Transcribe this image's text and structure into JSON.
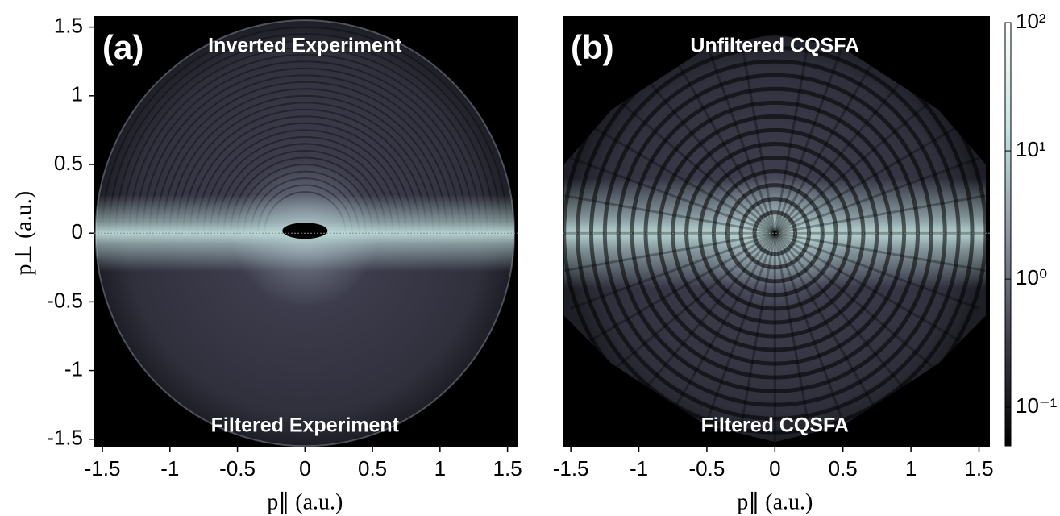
{
  "chart_data": [
    {
      "type": "heatmap",
      "panel_label": "(a)",
      "annotation_top": "Inverted Experiment",
      "annotation_bottom": "Filtered Experiment",
      "xlabel": "p∥ (a.u.)",
      "ylabel": "p⊥ (a.u.)",
      "xlim": [
        -1.56,
        1.58
      ],
      "ylim": [
        -1.56,
        1.58
      ],
      "xticks": [
        -1.5,
        -1,
        -0.5,
        0,
        0.5,
        1,
        1.5
      ],
      "yticks": [
        -1.5,
        -1,
        -0.5,
        0,
        0.5,
        1,
        1.5
      ]
    },
    {
      "type": "heatmap",
      "panel_label": "(b)",
      "annotation_top": "Unfiltered CQSFA",
      "annotation_bottom": "Filtered CQSFA",
      "xlabel": "p∥ (a.u.)",
      "xlim": [
        -1.56,
        1.58
      ],
      "ylim": [
        -1.56,
        1.58
      ],
      "xticks": [
        -1.5,
        -1,
        -0.5,
        0,
        0.5,
        1,
        1.5
      ],
      "colorbar": {
        "scale": "log",
        "lim": [
          0.05,
          100
        ],
        "ticks": [
          {
            "value": 0.1,
            "label": "10⁻¹"
          },
          {
            "value": 1,
            "label": "10⁰"
          },
          {
            "value": 10,
            "label": "10¹"
          },
          {
            "value": 100,
            "label": "10²"
          }
        ],
        "colormap": [
          "#000000",
          "#3c3c4c",
          "#8a94a4",
          "#c4e4e2",
          "#ffffff"
        ]
      }
    }
  ]
}
